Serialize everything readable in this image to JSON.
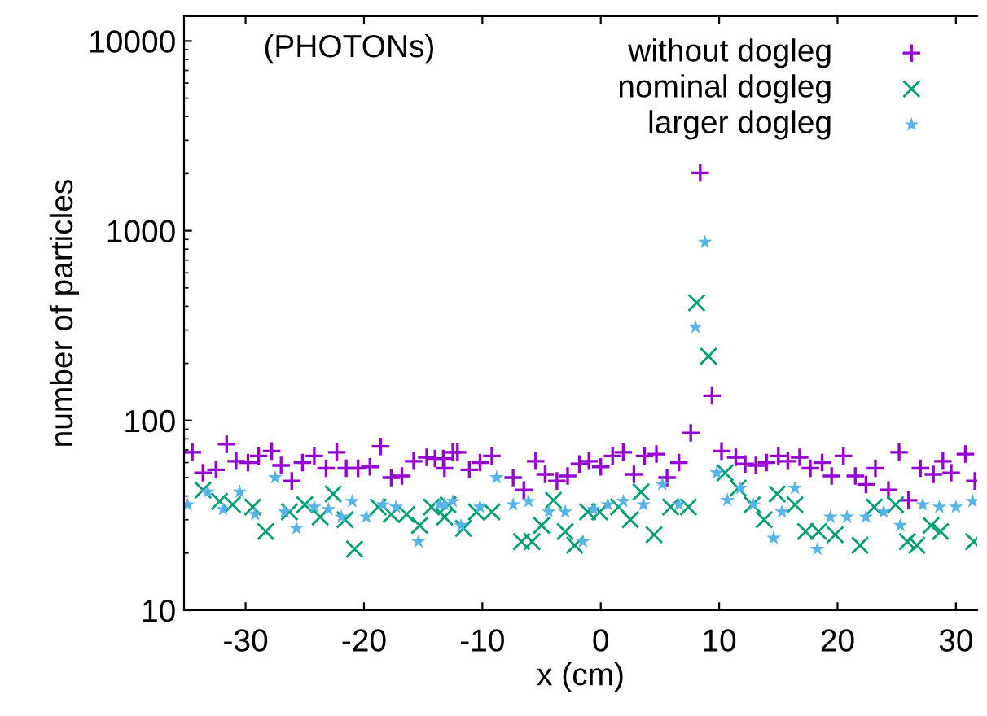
{
  "chart_data": {
    "type": "scatter",
    "xlabel": "x (cm)",
    "ylabel": "number of particles",
    "log": "y",
    "grid": false,
    "legend": "top right",
    "annotations": [
      "(PHOTONs)"
    ],
    "xlim": [
      -35.2,
      31.8
    ],
    "xticks": [
      -30,
      -20,
      -10,
      0,
      10,
      20,
      30
    ],
    "ylim": [
      10,
      13500
    ],
    "yticks": [
      10,
      100,
      1000,
      10000
    ],
    "series": [
      {
        "name": "without dogleg",
        "color": "#9400d3",
        "marker": "plus",
        "x": [
          -34.5,
          -33.6,
          -32.5,
          -31.6,
          -30.8,
          -29.8,
          -28.9,
          -27.8,
          -27.0,
          -26.1,
          -25.2,
          -24.2,
          -23.2,
          -22.3,
          -21.5,
          -20.5,
          -19.5,
          -18.6,
          -17.7,
          -16.8,
          -15.8,
          -14.7,
          -14.0,
          -13.2,
          -12.5,
          -13.3,
          -12.1,
          -11.1,
          -10.2,
          -9.2,
          -7.4,
          -6.5,
          -5.5,
          -4.7,
          -3.7,
          -2.8,
          -1.8,
          -1.0,
          0,
          1.0,
          1.9,
          2.8,
          3.7,
          4.7,
          5.6,
          6.6,
          7.6,
          8.4,
          9.4,
          10.2,
          11.4,
          12.2,
          13.1,
          14.0,
          15.0,
          15.8,
          16.8,
          17.7,
          18.7,
          19.5,
          20.5,
          21.5,
          22.4,
          23.2,
          24.3,
          25.2,
          26.0,
          27.0,
          28.1,
          28.9,
          29.6,
          30.8,
          31.6
        ],
        "values": [
          68,
          53,
          55,
          75,
          61,
          60,
          65,
          69,
          58,
          48,
          60,
          65,
          56,
          68,
          56,
          56,
          57,
          73,
          50,
          51,
          61,
          64,
          63,
          56,
          68,
          63,
          68,
          55,
          60,
          65,
          50,
          43,
          61,
          52,
          48,
          51,
          59,
          61,
          57,
          65,
          68,
          52,
          65,
          66.5,
          50,
          60,
          86,
          2020,
          135,
          69,
          64,
          59,
          58,
          60,
          65,
          61,
          64,
          56,
          60,
          51,
          65,
          51,
          46,
          56,
          43,
          68,
          38,
          56,
          52,
          61,
          53,
          66.5,
          48
        ]
      },
      {
        "name": "nominal dogleg",
        "color": "#009e73",
        "marker": "cross",
        "x": [
          -33.6,
          -32.2,
          -31.1,
          -29.4,
          -28.3,
          -26.3,
          -25.0,
          -23.7,
          -22.6,
          -21.6,
          -20.8,
          -18.8,
          -17.7,
          -16.4,
          -15.3,
          -14.3,
          -12.9,
          -13.2,
          -11.6,
          -10.5,
          -9.2,
          -6.7,
          -5.8,
          -5.0,
          -4.0,
          -3.0,
          -2.2,
          -1.1,
          -0.1,
          1.5,
          2.5,
          3.4,
          4.5,
          5.9,
          7.4,
          8.1,
          9.1,
          10.5,
          11.6,
          12.8,
          13.8,
          14.9,
          16.4,
          17.3,
          18.4,
          19.8,
          21.9,
          23.1,
          24.9,
          25.9,
          26.7,
          27.9,
          28.7,
          31.5
        ],
        "values": [
          43,
          37.5,
          36,
          35,
          26,
          33,
          36,
          31,
          41,
          30,
          21,
          35,
          32,
          32,
          28,
          35,
          36,
          31,
          27,
          33,
          33,
          23,
          23,
          28,
          38,
          26,
          22,
          33,
          33,
          35,
          30,
          42,
          25,
          35,
          35,
          417,
          218,
          53,
          44,
          36,
          30,
          41,
          36,
          26,
          26,
          25,
          22,
          35,
          36,
          23,
          22,
          28,
          26,
          23
        ]
      },
      {
        "name": "larger dogleg",
        "color": "#56b4e9",
        "marker": "star",
        "x": [
          -34.9,
          -33.2,
          -31.9,
          -30.5,
          -29.2,
          -27.5,
          -26.7,
          -25.7,
          -24.2,
          -23.0,
          -21.9,
          -21.0,
          -19.8,
          -18.4,
          -17.3,
          -15.4,
          -13.6,
          -12.5,
          -13.2,
          -11.8,
          -10.2,
          -8.8,
          -7.4,
          -6.1,
          -4.4,
          -3.0,
          -1.5,
          -0.6,
          0.6,
          1.9,
          3.6,
          5.2,
          6.6,
          8.0,
          8.8,
          9.8,
          10.7,
          11.8,
          12.9,
          14.6,
          15.3,
          16.4,
          18.3,
          19.4,
          20.8,
          22.4,
          23.9,
          25.3,
          27.2,
          28.6,
          30.0,
          31.4
        ],
        "values": [
          36,
          42,
          34,
          42,
          32,
          50,
          33,
          27,
          35,
          34,
          31,
          37.5,
          31,
          36,
          35,
          23,
          36,
          37.5,
          36,
          28,
          35,
          50,
          36,
          37.5,
          33,
          33,
          23,
          34,
          36,
          37.5,
          36,
          46,
          36,
          310,
          871,
          53,
          38,
          44,
          36,
          24,
          33,
          44,
          21,
          31,
          31,
          31,
          33,
          28,
          36,
          35,
          35,
          37.5
        ]
      }
    ]
  }
}
